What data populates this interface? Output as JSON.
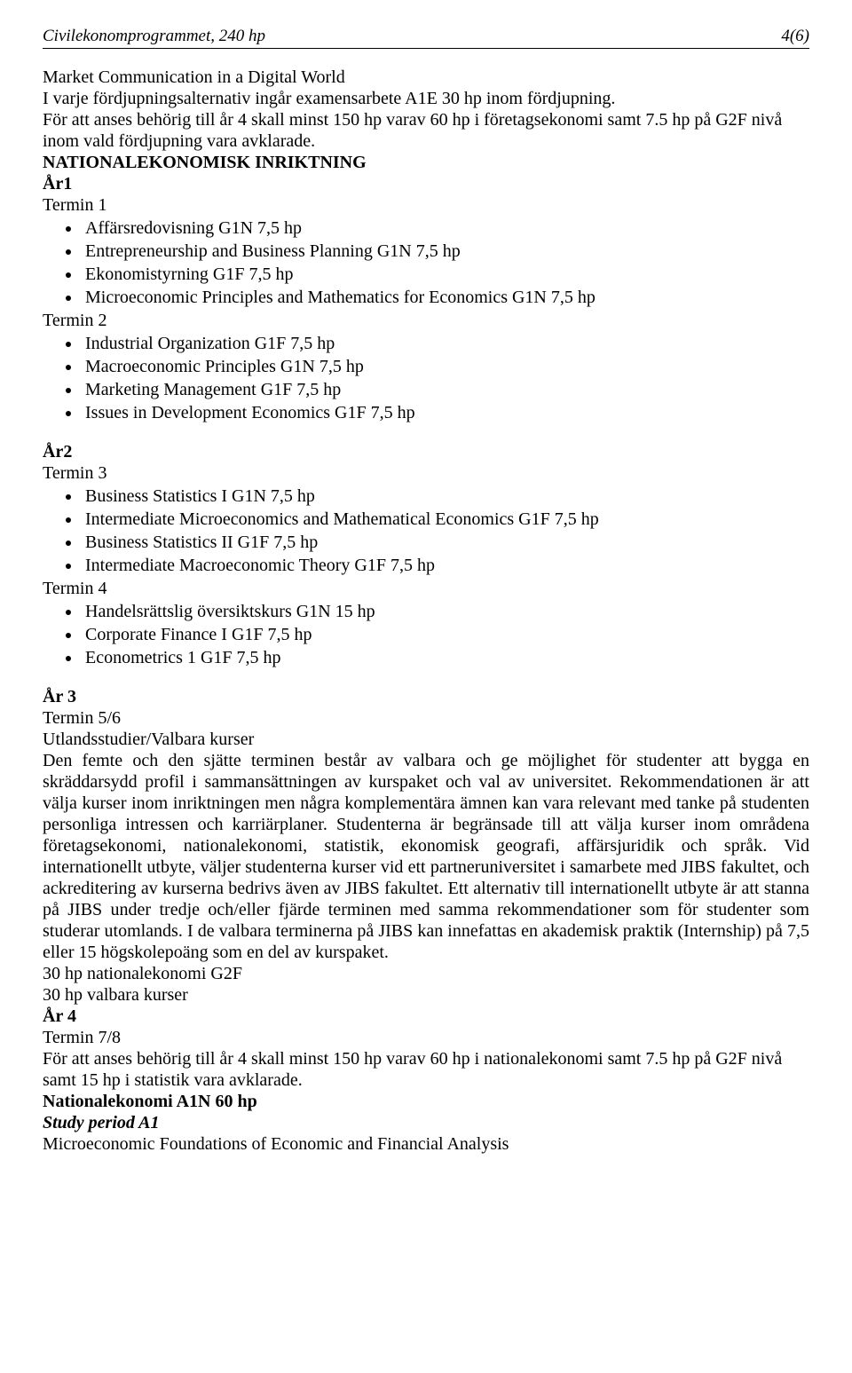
{
  "header": {
    "left": "Civilekonomprogrammet, 240 hp",
    "right": "4(6)"
  },
  "intro": {
    "line1": "Market Communication in a Digital World",
    "line2": "I varje fördjupningsalternativ ingår examensarbete A1E 30 hp inom fördjupning.",
    "line3": "För att anses behörig till år 4 skall minst 150 hp varav 60 hp i företagsekonomi samt 7.5 hp på G2F nivå inom vald fördjupning vara avklarade."
  },
  "section_heading": "NATIONALEKONOMISK INRIKTNING",
  "year1": {
    "heading": "År1",
    "termin1_label": "Termin 1",
    "termin1_items": [
      "Affärsredovisning G1N 7,5 hp",
      "Entrepreneurship and Business Planning G1N 7,5 hp",
      "Ekonomistyrning G1F 7,5 hp",
      "Microeconomic Principles and Mathematics for Economics G1N 7,5 hp"
    ],
    "termin2_label": "Termin 2",
    "termin2_items": [
      "Industrial Organization G1F 7,5 hp",
      "Macroeconomic Principles G1N 7,5 hp",
      "Marketing Management G1F 7,5 hp",
      "Issues in Development Economics G1F 7,5 hp"
    ]
  },
  "year2": {
    "heading": "År2",
    "termin3_label": "Termin 3",
    "termin3_items": [
      "Business Statistics I G1N 7,5 hp",
      "Intermediate Microeconomics and Mathematical Economics G1F 7,5 hp",
      "Business Statistics II G1F 7,5 hp",
      "Intermediate Macroeconomic Theory G1F 7,5 hp"
    ],
    "termin4_label": "Termin 4",
    "termin4_items": [
      "Handelsrättslig översiktskurs G1N 15 hp",
      "Corporate Finance I G1F 7,5 hp",
      "Econometrics 1 G1F 7,5 hp"
    ]
  },
  "year3": {
    "heading": "År 3",
    "termin56_label": "Termin 5/6",
    "subhead": "Utlandsstudier/Valbara kurser",
    "paragraph": "Den femte och den sjätte terminen består av valbara och ge möjlighet för studenter att bygga en skräddarsydd profil i sammansättningen av kurspaket och val av universitet. Rekommendationen är att välja kurser inom inriktningen men några komplementära ämnen kan vara relevant med tanke på studenten personliga intressen och karriärplaner. Studenterna är begränsade till att välja kurser inom områdena företagsekonomi, nationalekonomi, statistik, ekonomisk geografi, affärsjuridik och språk. Vid internationellt utbyte, väljer studenterna kurser vid ett partneruniversitet i samarbete med JIBS fakultet, och ackreditering av kurserna bedrivs även av JIBS fakultet. Ett alternativ till internationellt utbyte är att stanna på JIBS under tredje och/eller fjärde terminen med samma rekommendationer som för studenter som studerar utomlands. I de valbara terminerna på JIBS kan innefattas en akademisk praktik (Internship) på 7,5 eller 15 högskolepoäng som en del av kurspaket.",
    "line_a": "30 hp nationalekonomi G2F",
    "line_b": "30 hp valbara kurser"
  },
  "year4": {
    "heading": "År 4",
    "termin78_label": "Termin 7/8",
    "paragraph": "För att anses behörig till år 4 skall minst 150 hp varav 60 hp i nationalekonomi samt 7.5 hp på G2F nivå samt 15 hp i statistik vara avklarade.",
    "sub_bold": "Nationalekonomi A1N 60 hp",
    "study_period": "Study period A1",
    "last_line": "Microeconomic Foundations of Economic and Financial Analysis"
  }
}
